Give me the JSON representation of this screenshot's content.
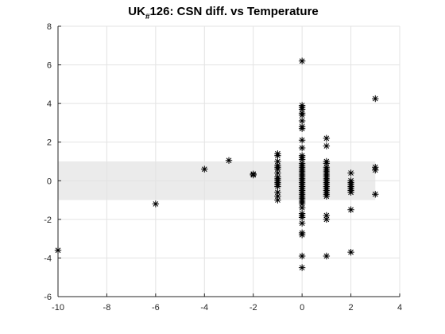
{
  "chart_data": {
    "type": "scatter",
    "title": {
      "pre": "UK",
      "subscript": "#",
      "post": "126: CSN diff. vs Temperature"
    },
    "xlabel": "",
    "ylabel": "",
    "xlim": [
      -10,
      4
    ],
    "ylim": [
      -6,
      8
    ],
    "xticks": [
      -10,
      -8,
      -6,
      -4,
      -2,
      0,
      2,
      4
    ],
    "yticks": [
      -6,
      -4,
      -2,
      0,
      2,
      4,
      6,
      8
    ],
    "grid": true,
    "marker": "*",
    "band": {
      "x_range": [
        -10,
        3
      ],
      "y_range": [
        -1,
        1
      ],
      "color": "#ebebeb"
    },
    "colors": {
      "marker": "#000000",
      "grid": "#e3e3e3",
      "axis": "#262626"
    },
    "series": [
      {
        "points": [
          [
            -10,
            -3.6
          ],
          [
            -6,
            -1.2
          ],
          [
            -4,
            0.6
          ],
          [
            -3,
            1.05
          ],
          [
            -2,
            0.3
          ],
          [
            -2,
            0.35
          ],
          [
            -1,
            1.4
          ],
          [
            -1,
            1.3
          ],
          [
            -1,
            1.0
          ],
          [
            -1,
            0.8
          ],
          [
            -1,
            0.7
          ],
          [
            -1,
            0.6
          ],
          [
            -1,
            0.4
          ],
          [
            -1,
            0.2
          ],
          [
            -1,
            0.1
          ],
          [
            -1,
            0.0
          ],
          [
            -1,
            -0.1
          ],
          [
            -1,
            -0.2
          ],
          [
            -1,
            -0.3
          ],
          [
            -1,
            -0.6
          ],
          [
            -1,
            -0.8
          ],
          [
            -1,
            -1.0
          ],
          [
            0,
            6.2
          ],
          [
            0,
            3.9
          ],
          [
            0,
            3.8
          ],
          [
            0,
            3.7
          ],
          [
            0,
            3.5
          ],
          [
            0,
            3.4
          ],
          [
            0,
            3.1
          ],
          [
            0,
            2.8
          ],
          [
            0,
            2.7
          ],
          [
            0,
            2.1
          ],
          [
            0,
            1.7
          ],
          [
            0,
            1.3
          ],
          [
            0,
            1.2
          ],
          [
            0,
            1.1
          ],
          [
            0,
            0.9
          ],
          [
            0,
            0.8
          ],
          [
            0,
            0.7
          ],
          [
            0,
            0.6
          ],
          [
            0,
            0.5
          ],
          [
            0,
            0.4
          ],
          [
            0,
            0.3
          ],
          [
            0,
            0.2
          ],
          [
            0,
            0.1
          ],
          [
            0,
            0.0
          ],
          [
            0,
            -0.1
          ],
          [
            0,
            -0.2
          ],
          [
            0,
            -0.3
          ],
          [
            0,
            -0.4
          ],
          [
            0,
            -0.5
          ],
          [
            0,
            -0.6
          ],
          [
            0,
            -0.7
          ],
          [
            0,
            -0.8
          ],
          [
            0,
            -0.9
          ],
          [
            0,
            -1.0
          ],
          [
            0,
            -1.1
          ],
          [
            0,
            -1.2
          ],
          [
            0,
            -1.4
          ],
          [
            0,
            -1.7
          ],
          [
            0,
            -1.8
          ],
          [
            0,
            -1.9
          ],
          [
            0,
            -2.2
          ],
          [
            0,
            -2.7
          ],
          [
            0,
            -2.8
          ],
          [
            0,
            -3.9
          ],
          [
            0,
            -4.5
          ],
          [
            1,
            2.2
          ],
          [
            1,
            1.8
          ],
          [
            1,
            1.0
          ],
          [
            1,
            0.9
          ],
          [
            1,
            0.7
          ],
          [
            1,
            0.6
          ],
          [
            1,
            0.5
          ],
          [
            1,
            0.4
          ],
          [
            1,
            0.3
          ],
          [
            1,
            0.2
          ],
          [
            1,
            0.1
          ],
          [
            1,
            0.0
          ],
          [
            1,
            -0.1
          ],
          [
            1,
            -0.2
          ],
          [
            1,
            -0.3
          ],
          [
            1,
            -0.4
          ],
          [
            1,
            -0.5
          ],
          [
            1,
            -0.6
          ],
          [
            1,
            -0.7
          ],
          [
            1,
            -0.8
          ],
          [
            1,
            -1.8
          ],
          [
            1,
            -2.0
          ],
          [
            1,
            -3.9
          ],
          [
            2,
            0.4
          ],
          [
            2,
            0.0
          ],
          [
            2,
            -0.1
          ],
          [
            2,
            -0.2
          ],
          [
            2,
            -0.3
          ],
          [
            2,
            -0.4
          ],
          [
            2,
            -0.5
          ],
          [
            2,
            -0.6
          ],
          [
            2,
            -1.5
          ],
          [
            2,
            -3.7
          ],
          [
            3,
            4.25
          ],
          [
            3,
            0.7
          ],
          [
            3,
            0.55
          ],
          [
            3,
            -0.7
          ]
        ]
      }
    ]
  }
}
